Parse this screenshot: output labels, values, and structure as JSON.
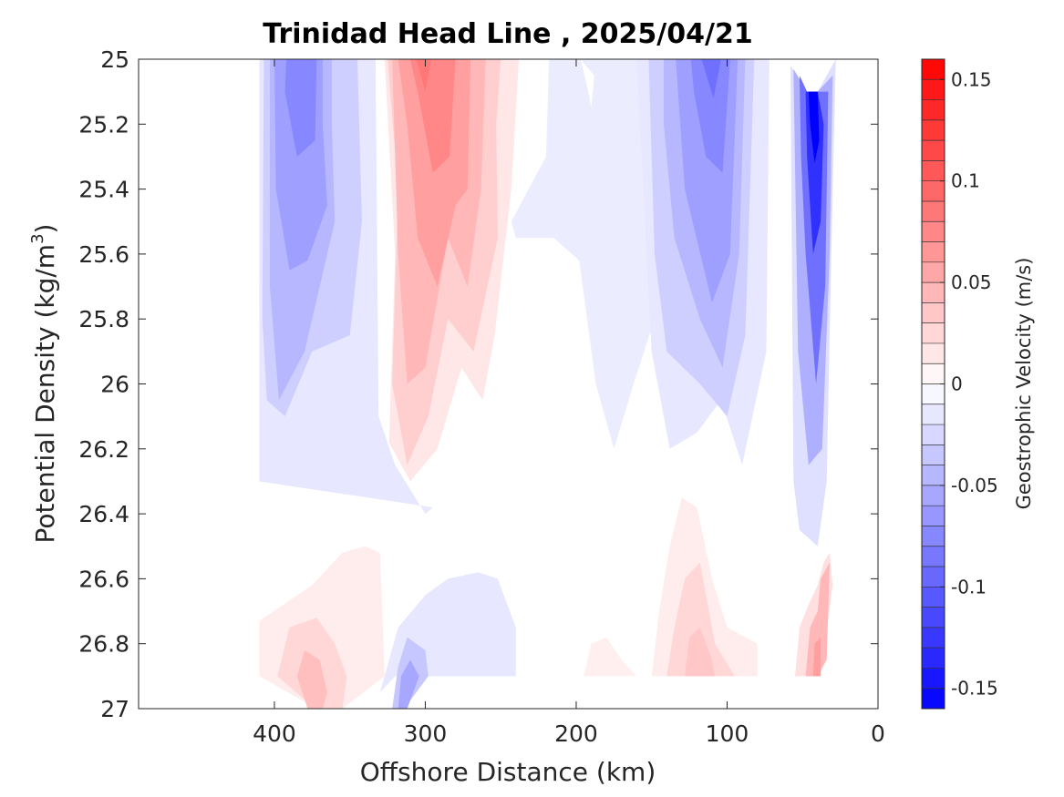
{
  "chart_data": {
    "type": "heatmap",
    "subtype": "filled-contour",
    "title": "Trinidad Head Line , 2025/04/21",
    "xlabel": "Offshore Distance (km)",
    "ylabel_main": "Potential Density (kg/m",
    "ylabel_sup": "3",
    "ylabel_close": ")",
    "xlim": [
      490,
      0
    ],
    "x_reversed": true,
    "xticks": [
      400,
      300,
      200,
      100,
      0
    ],
    "ylim": [
      25,
      27
    ],
    "y_reversed": true,
    "yticks": [
      25,
      25.2,
      25.4,
      25.6,
      25.8,
      26,
      26.2,
      26.4,
      26.6,
      26.8,
      27
    ],
    "colorbar": {
      "label": "Geostrophic Velocity (m/s)",
      "range": [
        -0.16,
        0.16
      ],
      "level_step": 0.01,
      "ticks": [
        0.15,
        0.1,
        0.05,
        0,
        -0.05,
        -0.1,
        -0.15
      ],
      "tick_labels": [
        "0.15",
        "0.1",
        "0.05",
        "0",
        "-0.05",
        "-0.1",
        "-0.15"
      ],
      "colormap": "blue-white-red",
      "neg_color": "#0000ff",
      "pos_color": "#ff0000",
      "zero_color": "#ffffff"
    },
    "features": [
      {
        "name": "offshore southward core",
        "x": [
          410,
          330
        ],
        "y": [
          25.0,
          26.4
        ],
        "peak_velocity": -0.07
      },
      {
        "name": "northward jet",
        "x": [
          325,
          240
        ],
        "y": [
          25.0,
          26.3
        ],
        "peak_velocity": 0.07
      },
      {
        "name": "broad weak southward flow",
        "x": [
          245,
          150
        ],
        "y": [
          25.0,
          26.2
        ],
        "peak_velocity": -0.02
      },
      {
        "name": "mid-shelf southward jet",
        "x": [
          160,
          72
        ],
        "y": [
          25.0,
          26.25
        ],
        "peak_velocity": -0.09
      },
      {
        "name": "nearshore southward jet",
        "x": [
          58,
          28
        ],
        "y": [
          25.1,
          26.45
        ],
        "peak_velocity": -0.16
      },
      {
        "name": "deep northward flow offshore",
        "x": [
          410,
          320
        ],
        "y": [
          26.5,
          27.0
        ],
        "peak_velocity": 0.05
      },
      {
        "name": "deep southward flow",
        "x": [
          330,
          240
        ],
        "y": [
          26.6,
          27.0
        ],
        "peak_velocity": -0.06
      },
      {
        "name": "deep northward flow mid-shelf",
        "x": [
          150,
          80
        ],
        "y": [
          26.3,
          26.9
        ],
        "peak_velocity": 0.04
      },
      {
        "name": "deep northward flow nearshore",
        "x": [
          55,
          28
        ],
        "y": [
          26.45,
          26.9
        ],
        "peak_velocity": 0.06
      }
    ]
  }
}
